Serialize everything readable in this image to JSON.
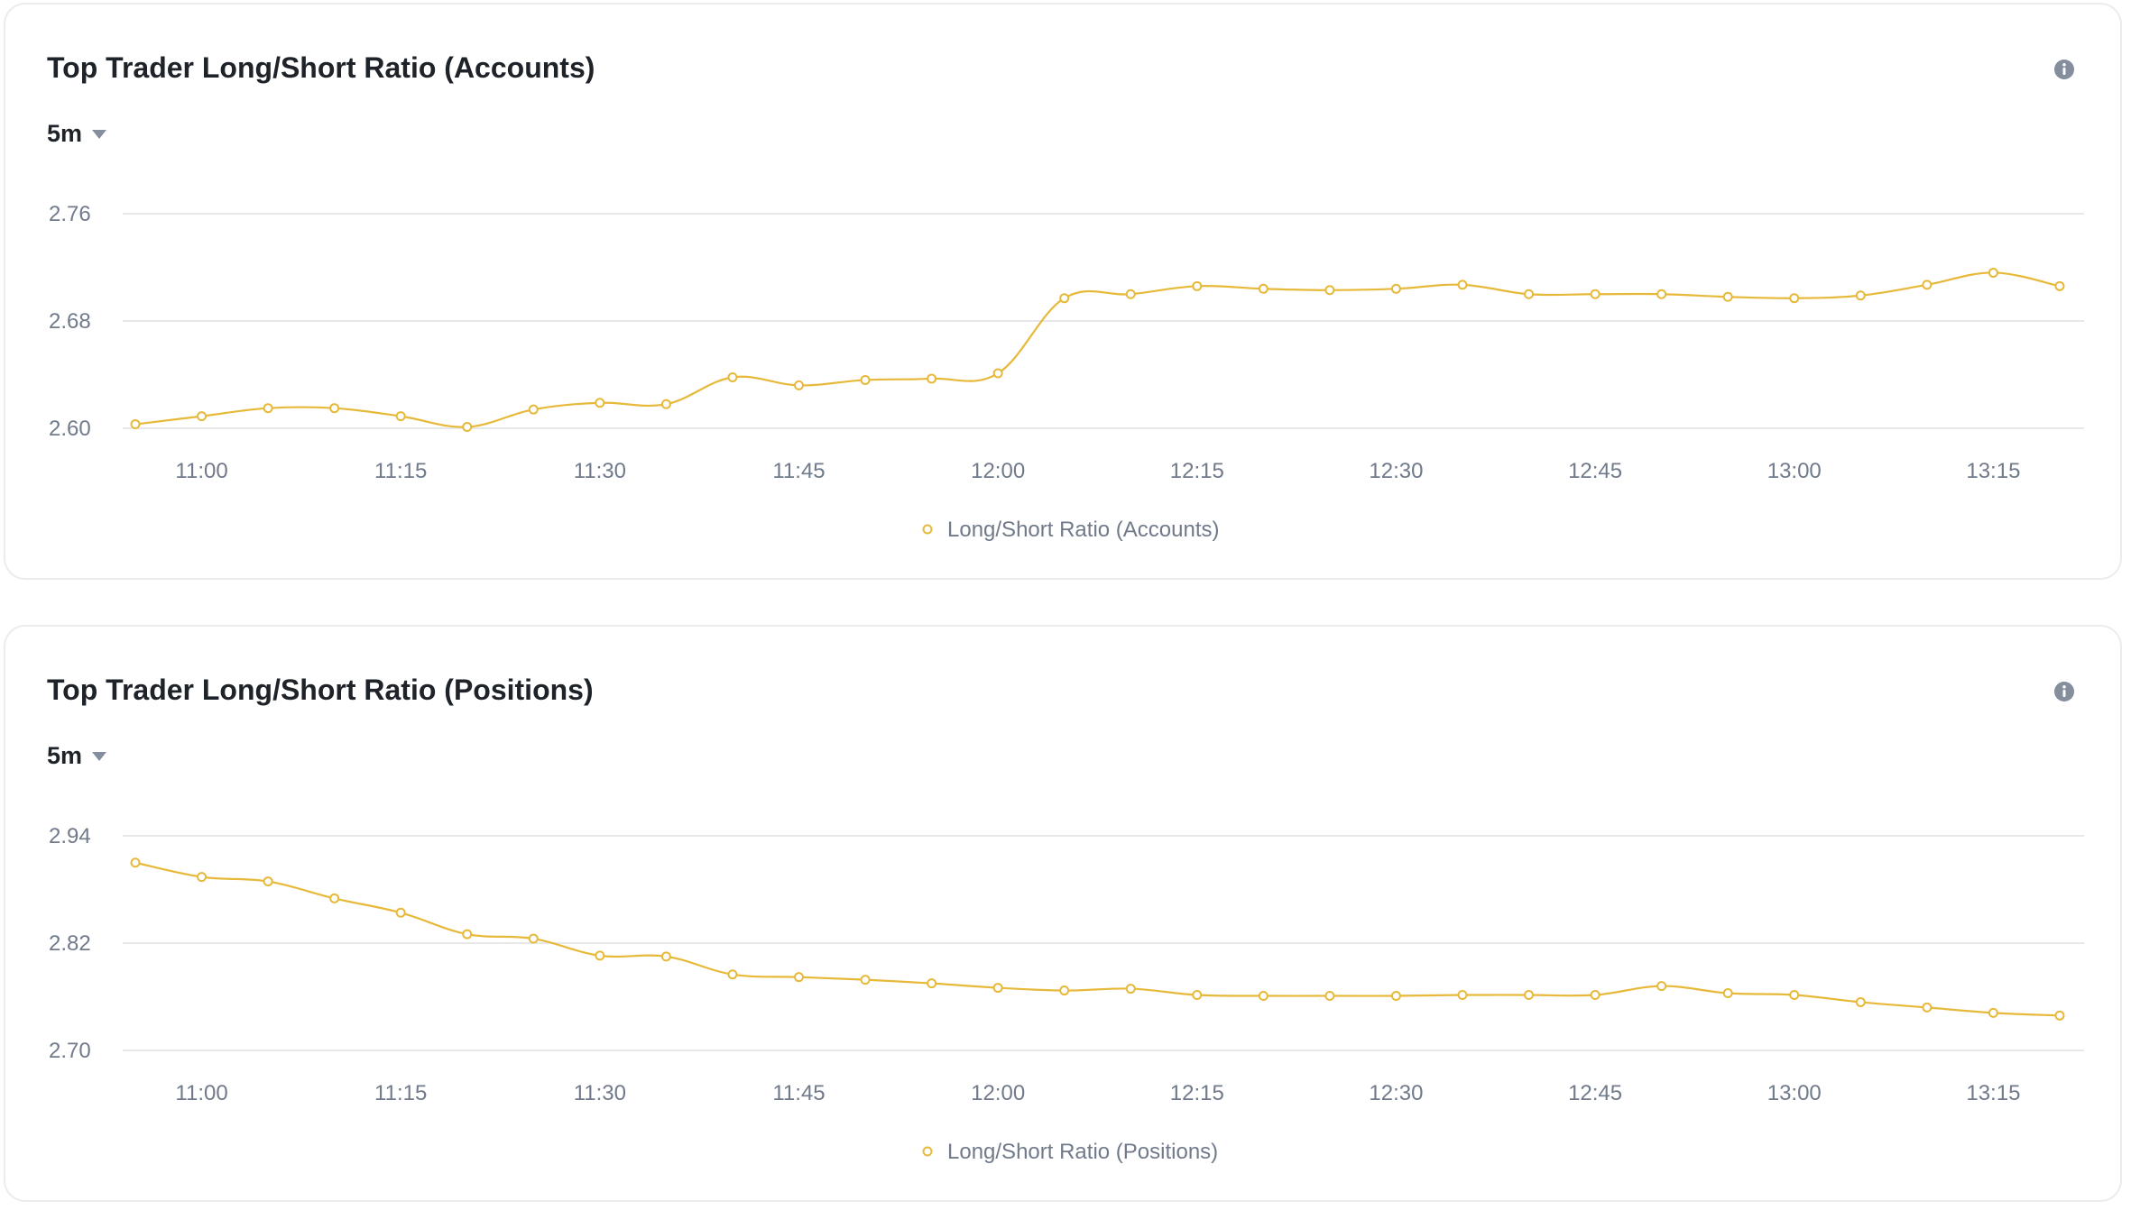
{
  "colors": {
    "series": "#e7b93a",
    "grid": "#e6e8ea",
    "axis_text": "#707a8a",
    "title": "#1e2329",
    "icon": "#848e9c"
  },
  "cards": [
    {
      "title": "Top Trader Long/Short Ratio (Accounts)",
      "interval": "5m",
      "info_icon": "info-icon",
      "legend": "Long/Short Ratio (Accounts)"
    },
    {
      "title": "Top Trader Long/Short Ratio (Positions)",
      "interval": "5m",
      "info_icon": "info-icon",
      "legend": "Long/Short Ratio (Positions)"
    }
  ],
  "chart_data": [
    {
      "type": "line",
      "title": "Top Trader Long/Short Ratio (Accounts)",
      "xlabel": "",
      "ylabel": "",
      "x": [
        "10:55",
        "11:00",
        "11:05",
        "11:10",
        "11:15",
        "11:20",
        "11:25",
        "11:30",
        "11:35",
        "11:40",
        "11:45",
        "11:50",
        "11:55",
        "12:00",
        "12:05",
        "12:10",
        "12:15",
        "12:20",
        "12:25",
        "12:30",
        "12:35",
        "12:40",
        "12:45",
        "12:50",
        "12:55",
        "13:00",
        "13:05",
        "13:10",
        "13:15",
        "13:20"
      ],
      "x_ticks": [
        "11:00",
        "11:15",
        "11:30",
        "11:45",
        "12:00",
        "12:15",
        "12:30",
        "12:45",
        "13:00",
        "13:15"
      ],
      "y_ticks": [
        "2.60",
        "2.68",
        "2.76"
      ],
      "ylim": [
        2.6,
        2.76
      ],
      "grid": true,
      "legend_position": "bottom-center",
      "series": [
        {
          "name": "Long/Short Ratio (Accounts)",
          "values": [
            2.603,
            2.609,
            2.615,
            2.615,
            2.609,
            2.601,
            2.614,
            2.619,
            2.618,
            2.638,
            2.632,
            2.636,
            2.637,
            2.641,
            2.697,
            2.7,
            2.706,
            2.704,
            2.703,
            2.704,
            2.707,
            2.7,
            2.7,
            2.7,
            2.698,
            2.697,
            2.699,
            2.707,
            2.716,
            2.706
          ]
        }
      ]
    },
    {
      "type": "line",
      "title": "Top Trader Long/Short Ratio (Positions)",
      "xlabel": "",
      "ylabel": "",
      "x": [
        "10:55",
        "11:00",
        "11:05",
        "11:10",
        "11:15",
        "11:20",
        "11:25",
        "11:30",
        "11:35",
        "11:40",
        "11:45",
        "11:50",
        "11:55",
        "12:00",
        "12:05",
        "12:10",
        "12:15",
        "12:20",
        "12:25",
        "12:30",
        "12:35",
        "12:40",
        "12:45",
        "12:50",
        "12:55",
        "13:00",
        "13:05",
        "13:10",
        "13:15",
        "13:20"
      ],
      "x_ticks": [
        "11:00",
        "11:15",
        "11:30",
        "11:45",
        "12:00",
        "12:15",
        "12:30",
        "12:45",
        "13:00",
        "13:15"
      ],
      "y_ticks": [
        "2.70",
        "2.82",
        "2.94"
      ],
      "ylim": [
        2.7,
        2.94
      ],
      "grid": true,
      "legend_position": "bottom-center",
      "series": [
        {
          "name": "Long/Short Ratio (Positions)",
          "values": [
            2.91,
            2.894,
            2.889,
            2.87,
            2.854,
            2.83,
            2.825,
            2.806,
            2.805,
            2.785,
            2.782,
            2.779,
            2.775,
            2.77,
            2.767,
            2.769,
            2.762,
            2.761,
            2.761,
            2.761,
            2.762,
            2.762,
            2.762,
            2.772,
            2.764,
            2.762,
            2.754,
            2.748,
            2.742,
            2.739
          ]
        }
      ]
    }
  ]
}
